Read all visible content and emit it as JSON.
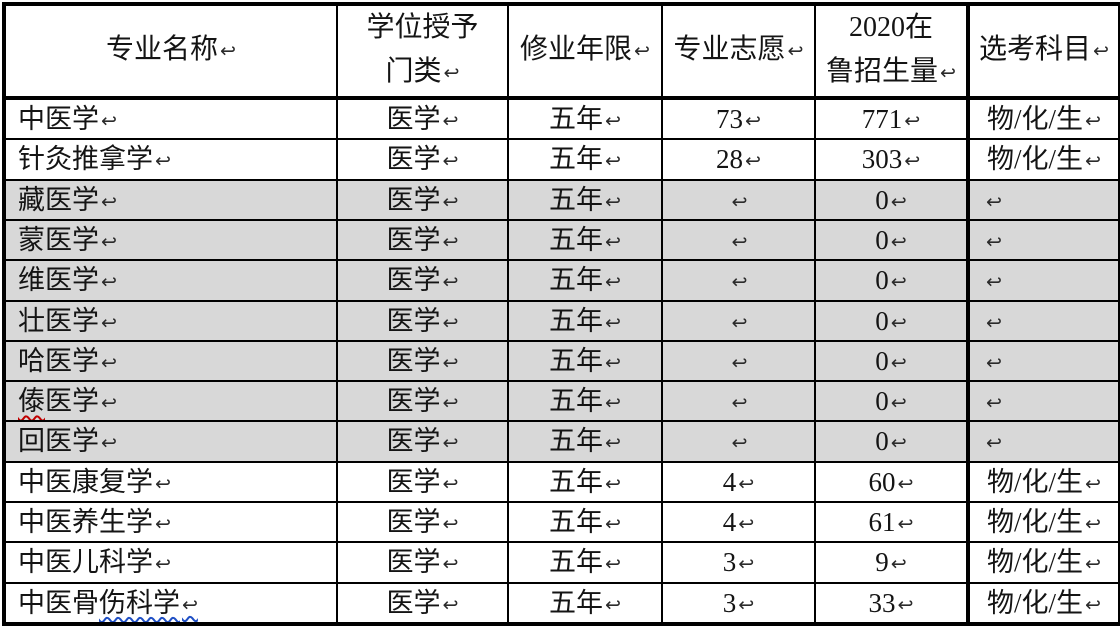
{
  "table": {
    "pilcrow": "↩",
    "colors": {
      "border": "#000000",
      "shaded_row_bg": "#d8d8d8",
      "spell_wavy_red": "#c00000",
      "grammar_wavy_blue": "#1f4fc5"
    },
    "header": {
      "cells": [
        {
          "lines": [
            "专业名称"
          ]
        },
        {
          "lines": [
            "学位授予",
            "门类"
          ]
        },
        {
          "lines": [
            "修业年限"
          ]
        },
        {
          "lines": [
            "专业志愿"
          ]
        },
        {
          "lines": [
            "2020在",
            "鲁招生量"
          ]
        },
        {
          "lines": [
            "选考科目"
          ]
        }
      ]
    },
    "rows": [
      {
        "name": "中医学",
        "degree": "医学",
        "duration": "五年",
        "preference": "73",
        "enrollment": "771",
        "subjects": "物/化/生",
        "shaded": false
      },
      {
        "name": "针灸推拿学",
        "degree": "医学",
        "duration": "五年",
        "preference": "28",
        "enrollment": "303",
        "subjects": "物/化/生",
        "shaded": false
      },
      {
        "name": "藏医学",
        "degree": "医学",
        "duration": "五年",
        "preference": "",
        "enrollment": "0",
        "subjects": "",
        "shaded": true
      },
      {
        "name": "蒙医学",
        "degree": "医学",
        "duration": "五年",
        "preference": "",
        "enrollment": "0",
        "subjects": "",
        "shaded": true
      },
      {
        "name": "维医学",
        "degree": "医学",
        "duration": "五年",
        "preference": "",
        "enrollment": "0",
        "subjects": "",
        "shaded": true
      },
      {
        "name": "壮医学",
        "degree": "医学",
        "duration": "五年",
        "preference": "",
        "enrollment": "0",
        "subjects": "",
        "shaded": true
      },
      {
        "name": "哈医学",
        "degree": "医学",
        "duration": "五年",
        "preference": "",
        "enrollment": "0",
        "subjects": "",
        "shaded": true
      },
      {
        "name": "傣医学",
        "degree": "医学",
        "duration": "五年",
        "preference": "",
        "enrollment": "0",
        "subjects": "",
        "shaded": true,
        "spellcheck": {
          "color": "red",
          "start": 0,
          "end": 1,
          "include_mark": false
        }
      },
      {
        "name": "回医学",
        "degree": "医学",
        "duration": "五年",
        "preference": "",
        "enrollment": "0",
        "subjects": "",
        "shaded": true
      },
      {
        "name": "中医康复学",
        "degree": "医学",
        "duration": "五年",
        "preference": "4",
        "enrollment": "60",
        "subjects": "物/化/生",
        "shaded": false
      },
      {
        "name": "中医养生学",
        "degree": "医学",
        "duration": "五年",
        "preference": "4",
        "enrollment": "61",
        "subjects": "物/化/生",
        "shaded": false
      },
      {
        "name": "中医儿科学",
        "degree": "医学",
        "duration": "五年",
        "preference": "3",
        "enrollment": "9",
        "subjects": "物/化/生",
        "shaded": false
      },
      {
        "name": "中医骨伤科学",
        "degree": "医学",
        "duration": "五年",
        "preference": "3",
        "enrollment": "33",
        "subjects": "物/化/生",
        "shaded": false,
        "spellcheck": {
          "color": "blue",
          "start": 3,
          "end": 6,
          "include_mark": true
        }
      }
    ]
  }
}
